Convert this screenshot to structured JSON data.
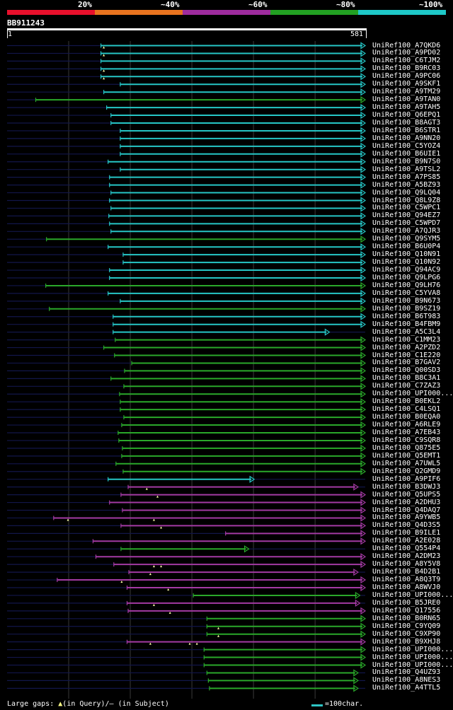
{
  "legend": {
    "segments": [
      {
        "label": "20%",
        "color": "#e8102c"
      },
      {
        "label": "~40%",
        "color": "#e8731f"
      },
      {
        "label": "~60%",
        "color": "#9e2c9e"
      },
      {
        "label": "~80%",
        "color": "#22a022"
      },
      {
        "label": "~100%",
        "color": "#1ec8c8"
      }
    ]
  },
  "query": {
    "id": "BB911243",
    "start": "1",
    "end": "581",
    "length": 581
  },
  "colors": {
    "cyan": "#26c6c6",
    "green": "#2aa82a",
    "purple": "#a33aa3",
    "navy": "#12164a",
    "gap": "#ffffaa",
    "grid": "#3a3a3a"
  },
  "hits": [
    {
      "id": "UniRef100_A7QKD6",
      "c": "cyan",
      "s": 0.262,
      "e": 1.0,
      "g": [
        0.27
      ]
    },
    {
      "id": "UniRef100_A9PD02",
      "c": "cyan",
      "s": 0.262,
      "e": 1.0,
      "g": [
        0.27
      ]
    },
    {
      "id": "UniRef100_C6TJM2",
      "c": "cyan",
      "s": 0.262,
      "e": 1.0,
      "g": []
    },
    {
      "id": "UniRef100_B9RC03",
      "c": "cyan",
      "s": 0.262,
      "e": 1.0,
      "g": [
        0.27
      ]
    },
    {
      "id": "UniRef100_A9PC06",
      "c": "cyan",
      "s": 0.262,
      "e": 1.0,
      "g": [
        0.27
      ]
    },
    {
      "id": "UniRef100_A9SKF1",
      "c": "cyan",
      "s": 0.316,
      "e": 1.0,
      "g": []
    },
    {
      "id": "UniRef100_A9TM29",
      "c": "cyan",
      "s": 0.27,
      "e": 1.0,
      "g": []
    },
    {
      "id": "UniRef100_A9TAN0",
      "c": "green",
      "s": 0.08,
      "e": 1.0,
      "g": []
    },
    {
      "id": "UniRef100_A9TAH5",
      "c": "cyan",
      "s": 0.278,
      "e": 1.0,
      "g": []
    },
    {
      "id": "UniRef100_Q6EPQ1",
      "c": "cyan",
      "s": 0.29,
      "e": 1.0,
      "g": []
    },
    {
      "id": "UniRef100_B8AGT3",
      "c": "cyan",
      "s": 0.29,
      "e": 1.0,
      "g": []
    },
    {
      "id": "UniRef100_B6STR1",
      "c": "cyan",
      "s": 0.316,
      "e": 1.0,
      "g": []
    },
    {
      "id": "UniRef100_A9NN20",
      "c": "cyan",
      "s": 0.316,
      "e": 1.0,
      "g": []
    },
    {
      "id": "UniRef100_C5YOZ4",
      "c": "cyan",
      "s": 0.316,
      "e": 1.0,
      "g": []
    },
    {
      "id": "UniRef100_B6UIE1",
      "c": "cyan",
      "s": 0.316,
      "e": 1.0,
      "g": []
    },
    {
      "id": "UniRef100_B9N7S0",
      "c": "cyan",
      "s": 0.282,
      "e": 1.0,
      "g": []
    },
    {
      "id": "UniRef100_A9TSL2",
      "c": "cyan",
      "s": 0.316,
      "e": 1.0,
      "g": []
    },
    {
      "id": "UniRef100_A7PS85",
      "c": "cyan",
      "s": 0.286,
      "e": 1.0,
      "g": []
    },
    {
      "id": "UniRef100_A5BZ93",
      "c": "cyan",
      "s": 0.286,
      "e": 1.0,
      "g": []
    },
    {
      "id": "UniRef100_Q9LQ04",
      "c": "cyan",
      "s": 0.29,
      "e": 1.0,
      "g": []
    },
    {
      "id": "UniRef100_Q8L9Z8",
      "c": "cyan",
      "s": 0.286,
      "e": 1.0,
      "g": []
    },
    {
      "id": "UniRef100_C5WPC1",
      "c": "cyan",
      "s": 0.29,
      "e": 1.0,
      "g": []
    },
    {
      "id": "UniRef100_Q94EZ7",
      "c": "cyan",
      "s": 0.284,
      "e": 1.0,
      "g": []
    },
    {
      "id": "UniRef100_C5WPD7",
      "c": "cyan",
      "s": 0.286,
      "e": 1.0,
      "g": []
    },
    {
      "id": "UniRef100_A7QJR3",
      "c": "cyan",
      "s": 0.29,
      "e": 1.0,
      "g": []
    },
    {
      "id": "UniRef100_Q9SYM5",
      "c": "green",
      "s": 0.11,
      "e": 1.0,
      "g": []
    },
    {
      "id": "UniRef100_B6U0P4",
      "c": "cyan",
      "s": 0.282,
      "e": 1.0,
      "g": []
    },
    {
      "id": "UniRef100_Q10N91",
      "c": "cyan",
      "s": 0.324,
      "e": 1.0,
      "g": []
    },
    {
      "id": "UniRef100_Q10N92",
      "c": "cyan",
      "s": 0.324,
      "e": 1.0,
      "g": []
    },
    {
      "id": "UniRef100_Q94AC9",
      "c": "cyan",
      "s": 0.286,
      "e": 1.0,
      "g": []
    },
    {
      "id": "UniRef100_Q9LPG6",
      "c": "cyan",
      "s": 0.286,
      "e": 1.0,
      "g": []
    },
    {
      "id": "UniRef100_Q9LH76",
      "c": "green",
      "s": 0.108,
      "e": 1.0,
      "g": []
    },
    {
      "id": "UniRef100_C5YVA8",
      "c": "cyan",
      "s": 0.282,
      "e": 1.0,
      "g": []
    },
    {
      "id": "UniRef100_B9N673",
      "c": "cyan",
      "s": 0.316,
      "e": 1.0,
      "g": []
    },
    {
      "id": "UniRef100_B9SZ19",
      "c": "green",
      "s": 0.118,
      "e": 1.0,
      "g": []
    },
    {
      "id": "UniRef100_B6T983",
      "c": "cyan",
      "s": 0.296,
      "e": 1.0,
      "g": []
    },
    {
      "id": "UniRef100_B4FBM9",
      "c": "cyan",
      "s": 0.296,
      "e": 1.0,
      "g": []
    },
    {
      "id": "UniRef100_A5C3L4",
      "c": "cyan",
      "s": 0.296,
      "e": 0.9,
      "g": []
    },
    {
      "id": "UniRef100_C1MM23",
      "c": "green",
      "s": 0.302,
      "e": 1.0,
      "g": []
    },
    {
      "id": "UniRef100_A2PZD2",
      "c": "green",
      "s": 0.27,
      "e": 1.0,
      "g": []
    },
    {
      "id": "UniRef100_C1E220",
      "c": "green",
      "s": 0.3,
      "e": 1.0,
      "g": []
    },
    {
      "id": "UniRef100_B7GAV2",
      "c": "green",
      "s": 0.348,
      "e": 1.0,
      "g": []
    },
    {
      "id": "UniRef100_Q00SD3",
      "c": "green",
      "s": 0.328,
      "e": 1.0,
      "g": []
    },
    {
      "id": "UniRef100_B8C3A1",
      "c": "green",
      "s": 0.29,
      "e": 1.0,
      "g": []
    },
    {
      "id": "UniRef100_C7ZAZ3",
      "c": "green",
      "s": 0.326,
      "e": 1.0,
      "g": []
    },
    {
      "id": "UniRef100_UPI000...",
      "c": "green",
      "s": 0.314,
      "e": 1.0,
      "g": []
    },
    {
      "id": "UniRef100_B0EKL2",
      "c": "green",
      "s": 0.316,
      "e": 1.0,
      "g": []
    },
    {
      "id": "UniRef100_C4LSQ1",
      "c": "green",
      "s": 0.316,
      "e": 1.0,
      "g": []
    },
    {
      "id": "UniRef100_B0EQA0",
      "c": "green",
      "s": 0.326,
      "e": 1.0,
      "g": []
    },
    {
      "id": "UniRef100_A6RLE9",
      "c": "green",
      "s": 0.32,
      "e": 1.0,
      "g": []
    },
    {
      "id": "UniRef100_A7EB43",
      "c": "green",
      "s": 0.31,
      "e": 1.0,
      "g": []
    },
    {
      "id": "UniRef100_C9SQR8",
      "c": "green",
      "s": 0.312,
      "e": 1.0,
      "g": []
    },
    {
      "id": "UniRef100_Q875E5",
      "c": "green",
      "s": 0.322,
      "e": 1.0,
      "g": []
    },
    {
      "id": "UniRef100_Q5EMT1",
      "c": "green",
      "s": 0.32,
      "e": 1.0,
      "g": []
    },
    {
      "id": "UniRef100_A7UWL5",
      "c": "green",
      "s": 0.304,
      "e": 1.0,
      "g": []
    },
    {
      "id": "UniRef100_Q2GMD9",
      "c": "green",
      "s": 0.324,
      "e": 1.0,
      "g": []
    },
    {
      "id": "UniRef100_A9PIF6",
      "c": "cyan",
      "s": 0.282,
      "e": 0.69,
      "g": []
    },
    {
      "id": "UniRef100_B3DWJ3",
      "c": "purple",
      "s": 0.338,
      "e": 0.98,
      "g": [
        0.39
      ]
    },
    {
      "id": "UniRef100_Q5UPS5",
      "c": "purple",
      "s": 0.318,
      "e": 1.0,
      "g": [
        0.42
      ]
    },
    {
      "id": "UniRef100_A2DHU3",
      "c": "purple",
      "s": 0.286,
      "e": 1.0,
      "g": []
    },
    {
      "id": "UniRef100_Q4DAQ7",
      "c": "purple",
      "s": 0.322,
      "e": 1.0,
      "g": []
    },
    {
      "id": "UniRef100_A9YWB5",
      "c": "purple",
      "s": 0.13,
      "e": 1.0,
      "g": [
        0.17,
        0.41
      ]
    },
    {
      "id": "UniRef100_Q4D3S5",
      "c": "purple",
      "s": 0.318,
      "e": 1.0,
      "g": [
        0.43
      ]
    },
    {
      "id": "UniRef100_B9ILE1",
      "c": "purple",
      "s": 0.61,
      "e": 1.0,
      "g": []
    },
    {
      "id": "UniRef100_A2E028",
      "c": "purple",
      "s": 0.24,
      "e": 1.0,
      "g": []
    },
    {
      "id": "UniRef100_Q554P4",
      "c": "green",
      "s": 0.318,
      "e": 0.675,
      "g": []
    },
    {
      "id": "UniRef100_A2DM23",
      "c": "purple",
      "s": 0.248,
      "e": 1.0,
      "g": []
    },
    {
      "id": "UniRef100_A8Y5V8",
      "c": "purple",
      "s": 0.298,
      "e": 1.0,
      "g": [
        0.41,
        0.43
      ]
    },
    {
      "id": "UniRef100_B4D2B1",
      "c": "purple",
      "s": 0.34,
      "e": 0.98,
      "g": [
        0.4
      ]
    },
    {
      "id": "UniRef100_A8Q3T9",
      "c": "purple",
      "s": 0.14,
      "e": 1.0,
      "g": [
        0.32
      ]
    },
    {
      "id": "UniRef100_A8WVJ0",
      "c": "purple",
      "s": 0.335,
      "e": 1.0,
      "g": [
        0.45
      ]
    },
    {
      "id": "UniRef100_UPI000...",
      "c": "green",
      "s": 0.52,
      "e": 0.985,
      "g": []
    },
    {
      "id": "UniRef100_B5JRE0",
      "c": "purple",
      "s": 0.335,
      "e": 0.985,
      "g": [
        0.41
      ]
    },
    {
      "id": "UniRef100_Q17556",
      "c": "purple",
      "s": 0.338,
      "e": 1.0,
      "g": [
        0.455
      ]
    },
    {
      "id": "UniRef100_B0RN65",
      "c": "green",
      "s": 0.558,
      "e": 1.0,
      "g": []
    },
    {
      "id": "UniRef100_C9YQ09",
      "c": "green",
      "s": 0.558,
      "e": 1.0,
      "g": [
        0.59
      ]
    },
    {
      "id": "UniRef100_C9XP90",
      "c": "green",
      "s": 0.558,
      "e": 1.0,
      "g": [
        0.59
      ]
    },
    {
      "id": "UniRef100_B9XHJ8",
      "c": "purple",
      "s": 0.335,
      "e": 1.0,
      "g": [
        0.4,
        0.51,
        0.53
      ]
    },
    {
      "id": "UniRef100_UPI000...",
      "c": "green",
      "s": 0.55,
      "e": 1.0,
      "g": []
    },
    {
      "id": "UniRef100_UPI000...",
      "c": "green",
      "s": 0.55,
      "e": 1.0,
      "g": []
    },
    {
      "id": "UniRef100_UPI000...",
      "c": "green",
      "s": 0.55,
      "e": 1.0,
      "g": []
    },
    {
      "id": "UniRef100_Q4UZ93",
      "c": "green",
      "s": 0.558,
      "e": 0.98,
      "g": []
    },
    {
      "id": "UniRef100_A8NES3",
      "c": "green",
      "s": 0.562,
      "e": 0.98,
      "g": []
    },
    {
      "id": "UniRef100_A4TTL5",
      "c": "green",
      "s": 0.565,
      "e": 0.98,
      "g": []
    }
  ],
  "footer": {
    "gaps_label": "Large gaps:",
    "gaps_query": "(in Query)/",
    "gaps_subject": "(in Subject)",
    "scale_label": "=100char."
  }
}
